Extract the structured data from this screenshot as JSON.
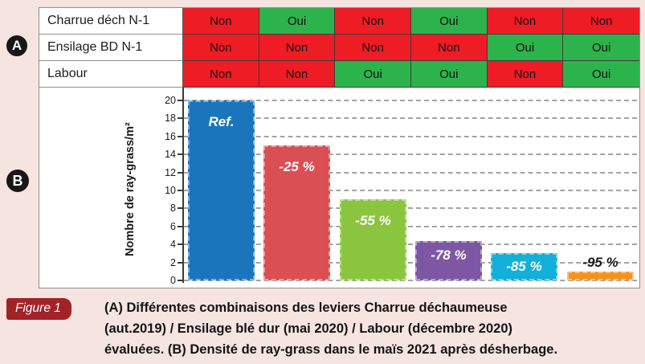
{
  "page": {
    "bg": "#f5e4df"
  },
  "badges": {
    "a": "A",
    "b": "B"
  },
  "table": {
    "rows": [
      {
        "label": "Charrue déch N-1",
        "cells": [
          "Non",
          "Oui",
          "Non",
          "Oui",
          "Non",
          "Non"
        ]
      },
      {
        "label": "Ensilage BD N-1",
        "cells": [
          "Non",
          "Non",
          "Non",
          "Non",
          "Oui",
          "Oui"
        ]
      },
      {
        "label": "Labour",
        "cells": [
          "Non",
          "Non",
          "Oui",
          "Oui",
          "Non",
          "Oui"
        ]
      }
    ],
    "cell_colors": {
      "Non": "#ee1c25",
      "Oui": "#2db34b"
    }
  },
  "chart_data": {
    "type": "bar",
    "title": "",
    "ylabel": "Nombre de ray-grass/m²",
    "xlabel": "",
    "ylim": [
      0,
      20
    ],
    "ytick_step": 2,
    "grid": "horizontal-dashed",
    "legend": "none",
    "bars": [
      {
        "label": "Ref.",
        "value": 20,
        "color": "#1b75bc",
        "label_color": "#ffffff",
        "label_pos": "top"
      },
      {
        "label": "-25 %",
        "value": 15,
        "color": "#d94f53",
        "label_color": "#ffffff",
        "label_pos": "top"
      },
      {
        "label": "-55 %",
        "value": 9,
        "color": "#8bc53f",
        "label_color": "#ffffff",
        "label_pos": "top"
      },
      {
        "label": "-78 %",
        "value": 4.4,
        "color": "#7e57a4",
        "label_color": "#ffffff",
        "label_pos": "toptight"
      },
      {
        "label": "-85 %",
        "value": 3,
        "color": "#12b0d9",
        "label_color": "#ffffff",
        "label_pos": "mid"
      },
      {
        "label": "-95 %",
        "value": 1,
        "color": "#f6921e",
        "label_color": "#1a1a1a",
        "label_pos": "above"
      }
    ]
  },
  "caption": {
    "badge": "Figure 1",
    "line1": "(A) Différentes combinaisons des leviers Charrue déchaumeuse",
    "line2": "(aut.2019) / Ensilage blé dur (mai 2020) / Labour (décembre 2020)",
    "line3": "évaluées. (B) Densité de ray-grass dans le maïs 2021 après désherbage."
  }
}
